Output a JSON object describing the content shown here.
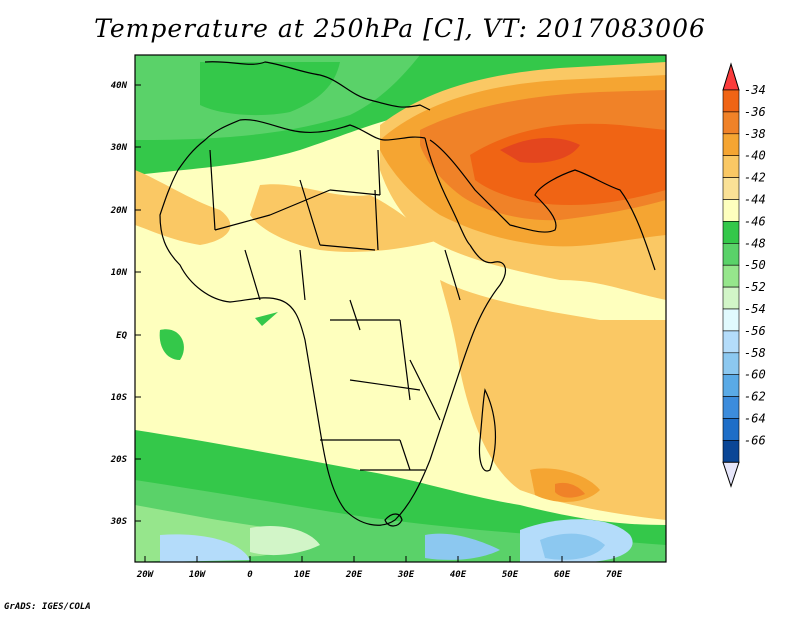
{
  "title": "Temperature at 250hPa [C], VT: 2017083006",
  "footer": "GrADS: IGES/COLA",
  "map": {
    "region": "Africa / Middle East / South Asia",
    "lat_labels": [
      "40N",
      "30N",
      "20N",
      "10N",
      "EQ",
      "10S",
      "20S",
      "30S"
    ],
    "lon_labels": [
      "20W",
      "10W",
      "0",
      "10E",
      "20E",
      "30E",
      "40E",
      "50E",
      "60E",
      "70E"
    ]
  },
  "colorbar": {
    "labels": [
      "-34",
      "-36",
      "-38",
      "-40",
      "-42",
      "-44",
      "-46",
      "-48",
      "-50",
      "-52",
      "-54",
      "-56",
      "-58",
      "-60",
      "-62",
      "-64",
      "-66"
    ],
    "colors": [
      "#fa3c3c",
      "#f06414",
      "#f08228",
      "#f5a532",
      "#fac864",
      "#fae196",
      "#feffbe",
      "#34c84a",
      "#5ad269",
      "#96e68c",
      "#d2f5c8",
      "#e1fafe",
      "#b4dcfa",
      "#8cc8f0",
      "#5aaae6",
      "#3c8cdc",
      "#1e6ec8",
      "#0a4696",
      "#0a1e6e"
    ]
  }
}
